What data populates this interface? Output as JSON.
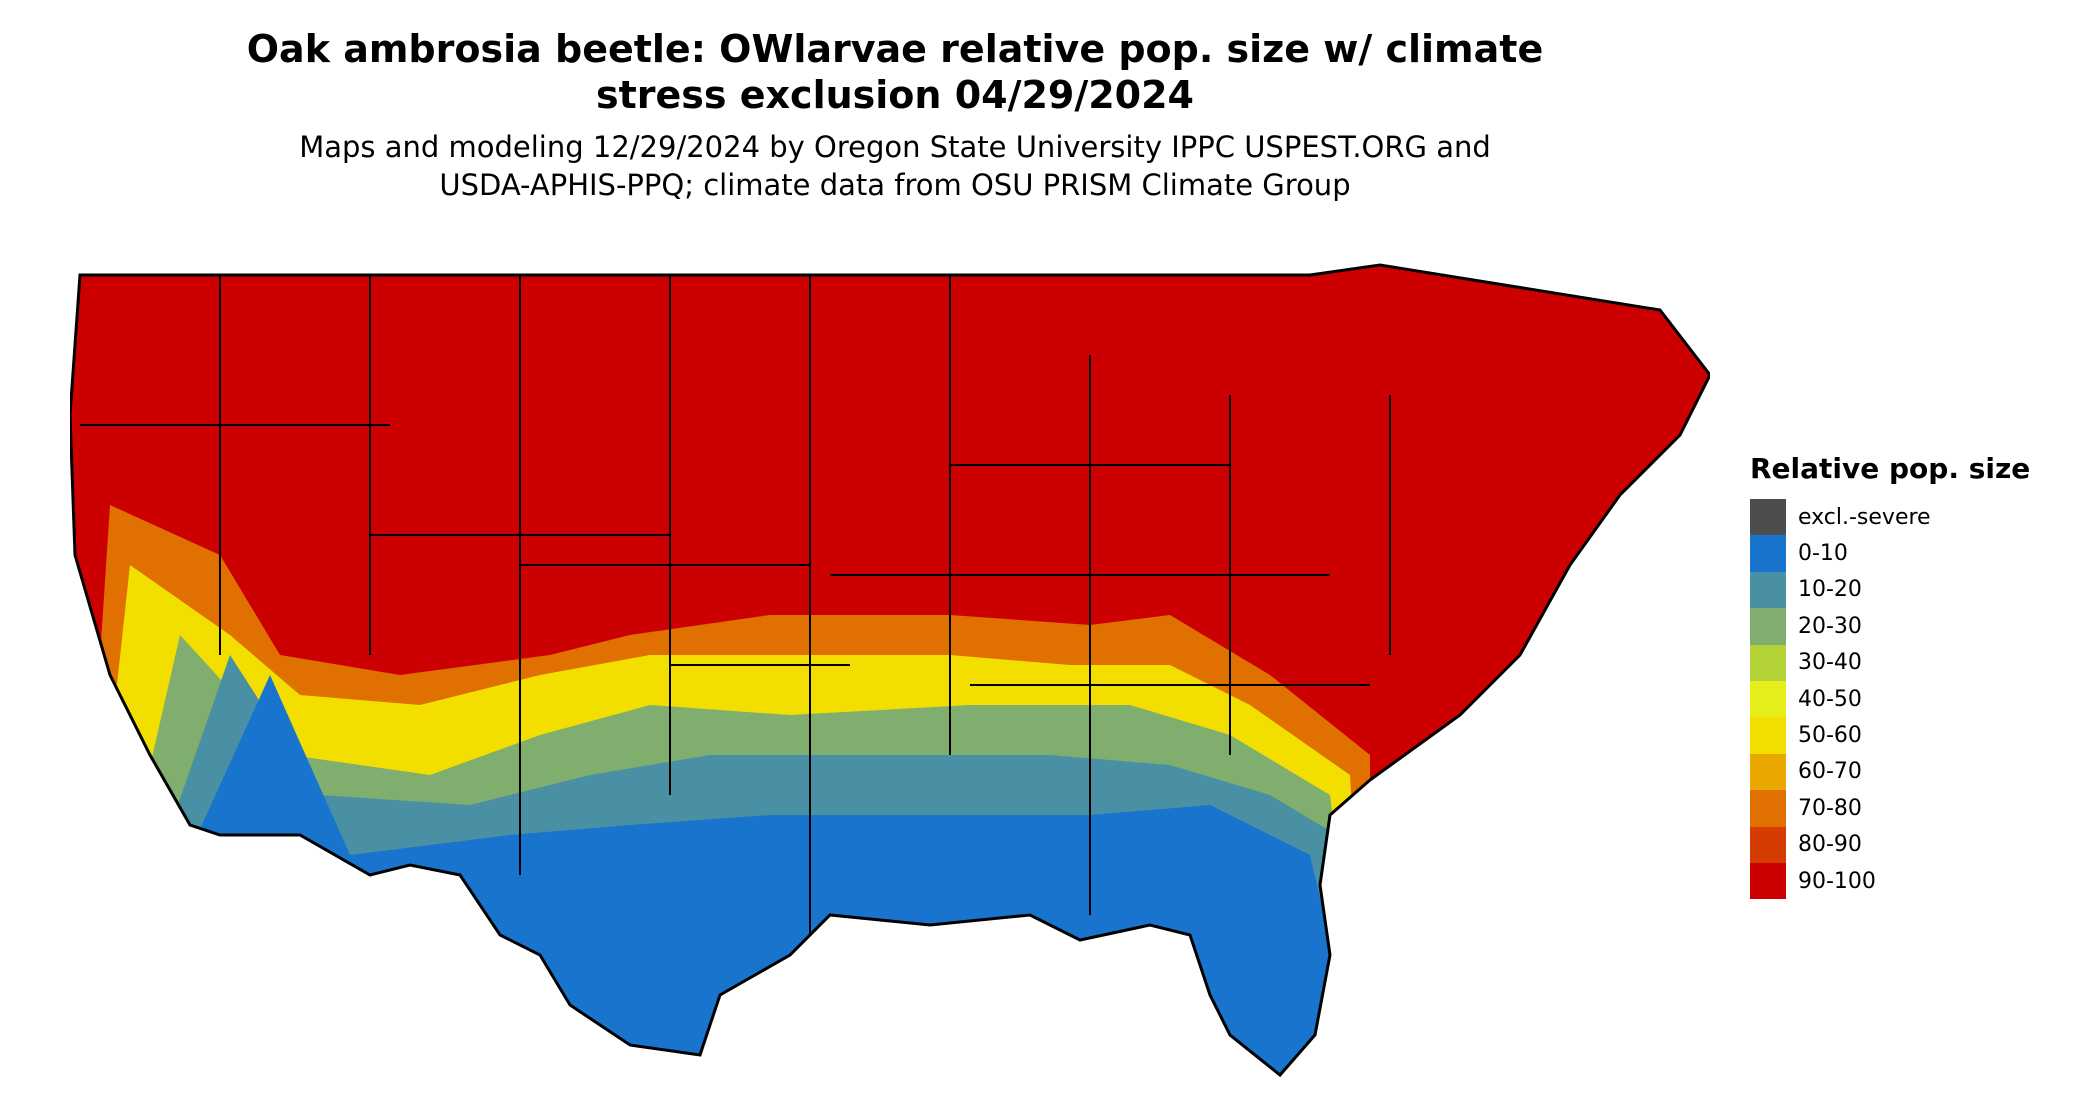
{
  "title_line1": "Oak ambrosia beetle: OWlarvae relative pop. size w/ climate",
  "title_line2": "stress exclusion 04/29/2024",
  "subtitle_line1": "Maps and modeling 12/29/2024 by Oregon State University IPPC USPEST.ORG and",
  "subtitle_line2": "USDA-APHIS-PPQ; climate data from OSU PRISM Climate Group",
  "legend": {
    "title": "Relative pop. size",
    "items": [
      {
        "label": "excl.-severe",
        "color": "#4d4d4d"
      },
      {
        "label": "0-10",
        "color": "#1874cd"
      },
      {
        "label": "10-20",
        "color": "#4a90a4"
      },
      {
        "label": "20-30",
        "color": "#7fae6e"
      },
      {
        "label": "30-40",
        "color": "#b2d235"
      },
      {
        "label": "40-50",
        "color": "#e5ee1a"
      },
      {
        "label": "50-60",
        "color": "#f2df00"
      },
      {
        "label": "60-70",
        "color": "#e8a800"
      },
      {
        "label": "70-80",
        "color": "#e07000"
      },
      {
        "label": "80-90",
        "color": "#d43c00"
      },
      {
        "label": "90-100",
        "color": "#cc0000"
      }
    ]
  }
}
